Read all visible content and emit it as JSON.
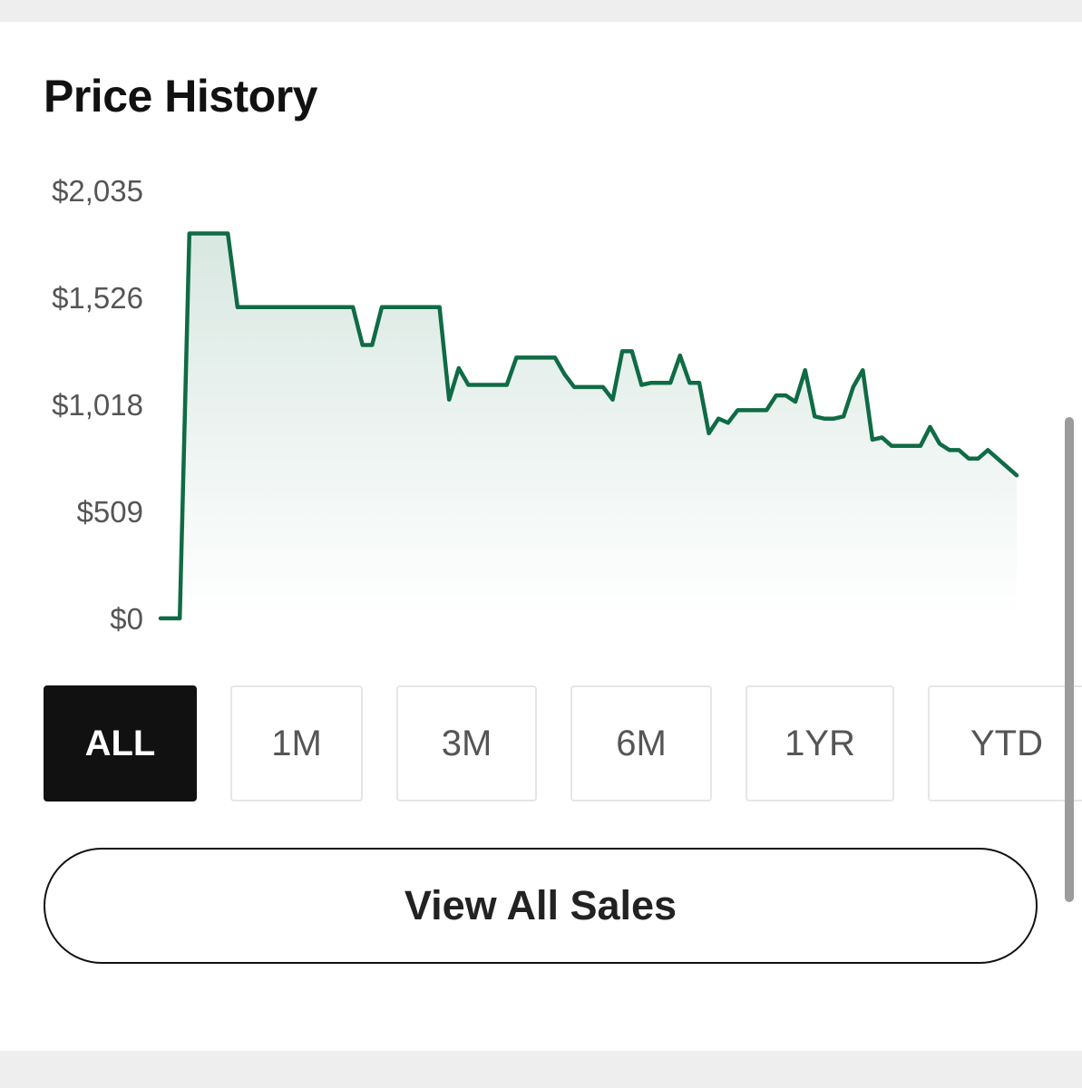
{
  "header": {
    "title": "Price History"
  },
  "chart_data": {
    "type": "line",
    "y_ticks": [
      "$2,035",
      "$1,526",
      "$1,018",
      "$509",
      "$0"
    ],
    "ylim": [
      0,
      2035
    ],
    "line_color": "#0f6b45",
    "fill": "gradient",
    "grid": false,
    "xlabel": "",
    "ylabel": "",
    "series": [
      {
        "values": [
          0,
          0,
          0,
          1830,
          1830,
          1830,
          1830,
          1830,
          1480,
          1480,
          1480,
          1480,
          1480,
          1480,
          1480,
          1480,
          1480,
          1480,
          1480,
          1480,
          1480,
          1300,
          1300,
          1480,
          1480,
          1480,
          1480,
          1480,
          1480,
          1480,
          1040,
          1190,
          1110,
          1110,
          1110,
          1110,
          1110,
          1240,
          1240,
          1240,
          1240,
          1240,
          1160,
          1100,
          1100,
          1100,
          1100,
          1040,
          1270,
          1270,
          1110,
          1120,
          1120,
          1120,
          1250,
          1120,
          1120,
          880,
          950,
          930,
          990,
          990,
          990,
          990,
          1060,
          1060,
          1030,
          1180,
          960,
          950,
          950,
          960,
          1100,
          1180,
          850,
          860,
          820,
          820,
          820,
          820,
          910,
          830,
          800,
          800,
          760,
          760,
          800,
          760,
          720,
          680
        ]
      }
    ]
  },
  "range_tabs": [
    {
      "label": "ALL",
      "active": true
    },
    {
      "label": "1M",
      "active": false
    },
    {
      "label": "3M",
      "active": false
    },
    {
      "label": "6M",
      "active": false
    },
    {
      "label": "1YR",
      "active": false
    },
    {
      "label": "YTD",
      "active": false
    }
  ],
  "actions": {
    "view_all_label": "View All Sales"
  }
}
